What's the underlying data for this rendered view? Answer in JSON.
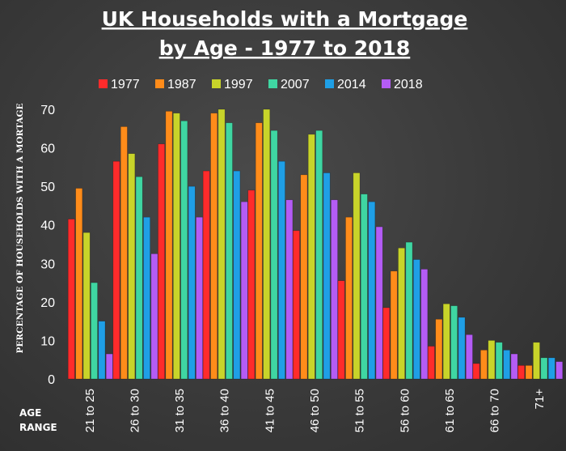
{
  "chart_data": {
    "type": "bar",
    "title_line1": "UK Households with a Mortgage",
    "title_line2": "by Age - 1977 to 2018",
    "ylabel": "PERCENTAGE OF HOUSEHOLDS WITH A MORTAGE",
    "xlabel_line1": "AGE",
    "xlabel_line2": "RANGE",
    "ylim": [
      0,
      70
    ],
    "yticks": [
      "0",
      "10",
      "20",
      "30",
      "40",
      "50",
      "60",
      "70"
    ],
    "categories": [
      "21 to 25",
      "26 to 30",
      "31 to 35",
      "36 to 40",
      "41 to 45",
      "46 to 50",
      "51 to 55",
      "56 to 60",
      "61 to 65",
      "66 to 70",
      "71+"
    ],
    "legend_position": "top",
    "grid": false,
    "series": [
      {
        "name": "1977",
        "color": "#ff2b2b",
        "values": [
          41.5,
          56.5,
          61,
          54,
          49,
          38.5,
          25.5,
          18.5,
          8.5,
          4,
          3.5
        ]
      },
      {
        "name": "1987",
        "color": "#ff8c1a",
        "values": [
          49.5,
          65.5,
          69.5,
          69,
          66.5,
          53,
          42,
          28,
          15.5,
          7.5,
          3.5
        ]
      },
      {
        "name": "1997",
        "color": "#c8d42a",
        "values": [
          38,
          58.5,
          69,
          70,
          70,
          63.5,
          53.5,
          34,
          19.5,
          10,
          9.5
        ]
      },
      {
        "name": "2007",
        "color": "#3fd6a2",
        "values": [
          25,
          52.5,
          67,
          66.5,
          64.5,
          64.5,
          48,
          35.5,
          19,
          9.5,
          5.5
        ]
      },
      {
        "name": "2014",
        "color": "#1f9fe6",
        "values": [
          15,
          42,
          50,
          54,
          56.5,
          53.5,
          46,
          31,
          16,
          7.5,
          5.5
        ]
      },
      {
        "name": "2018",
        "color": "#b45cf5",
        "values": [
          6.5,
          32.5,
          42,
          46,
          46.5,
          46.5,
          39.5,
          28.5,
          11.5,
          6.5,
          4.5
        ]
      }
    ]
  }
}
